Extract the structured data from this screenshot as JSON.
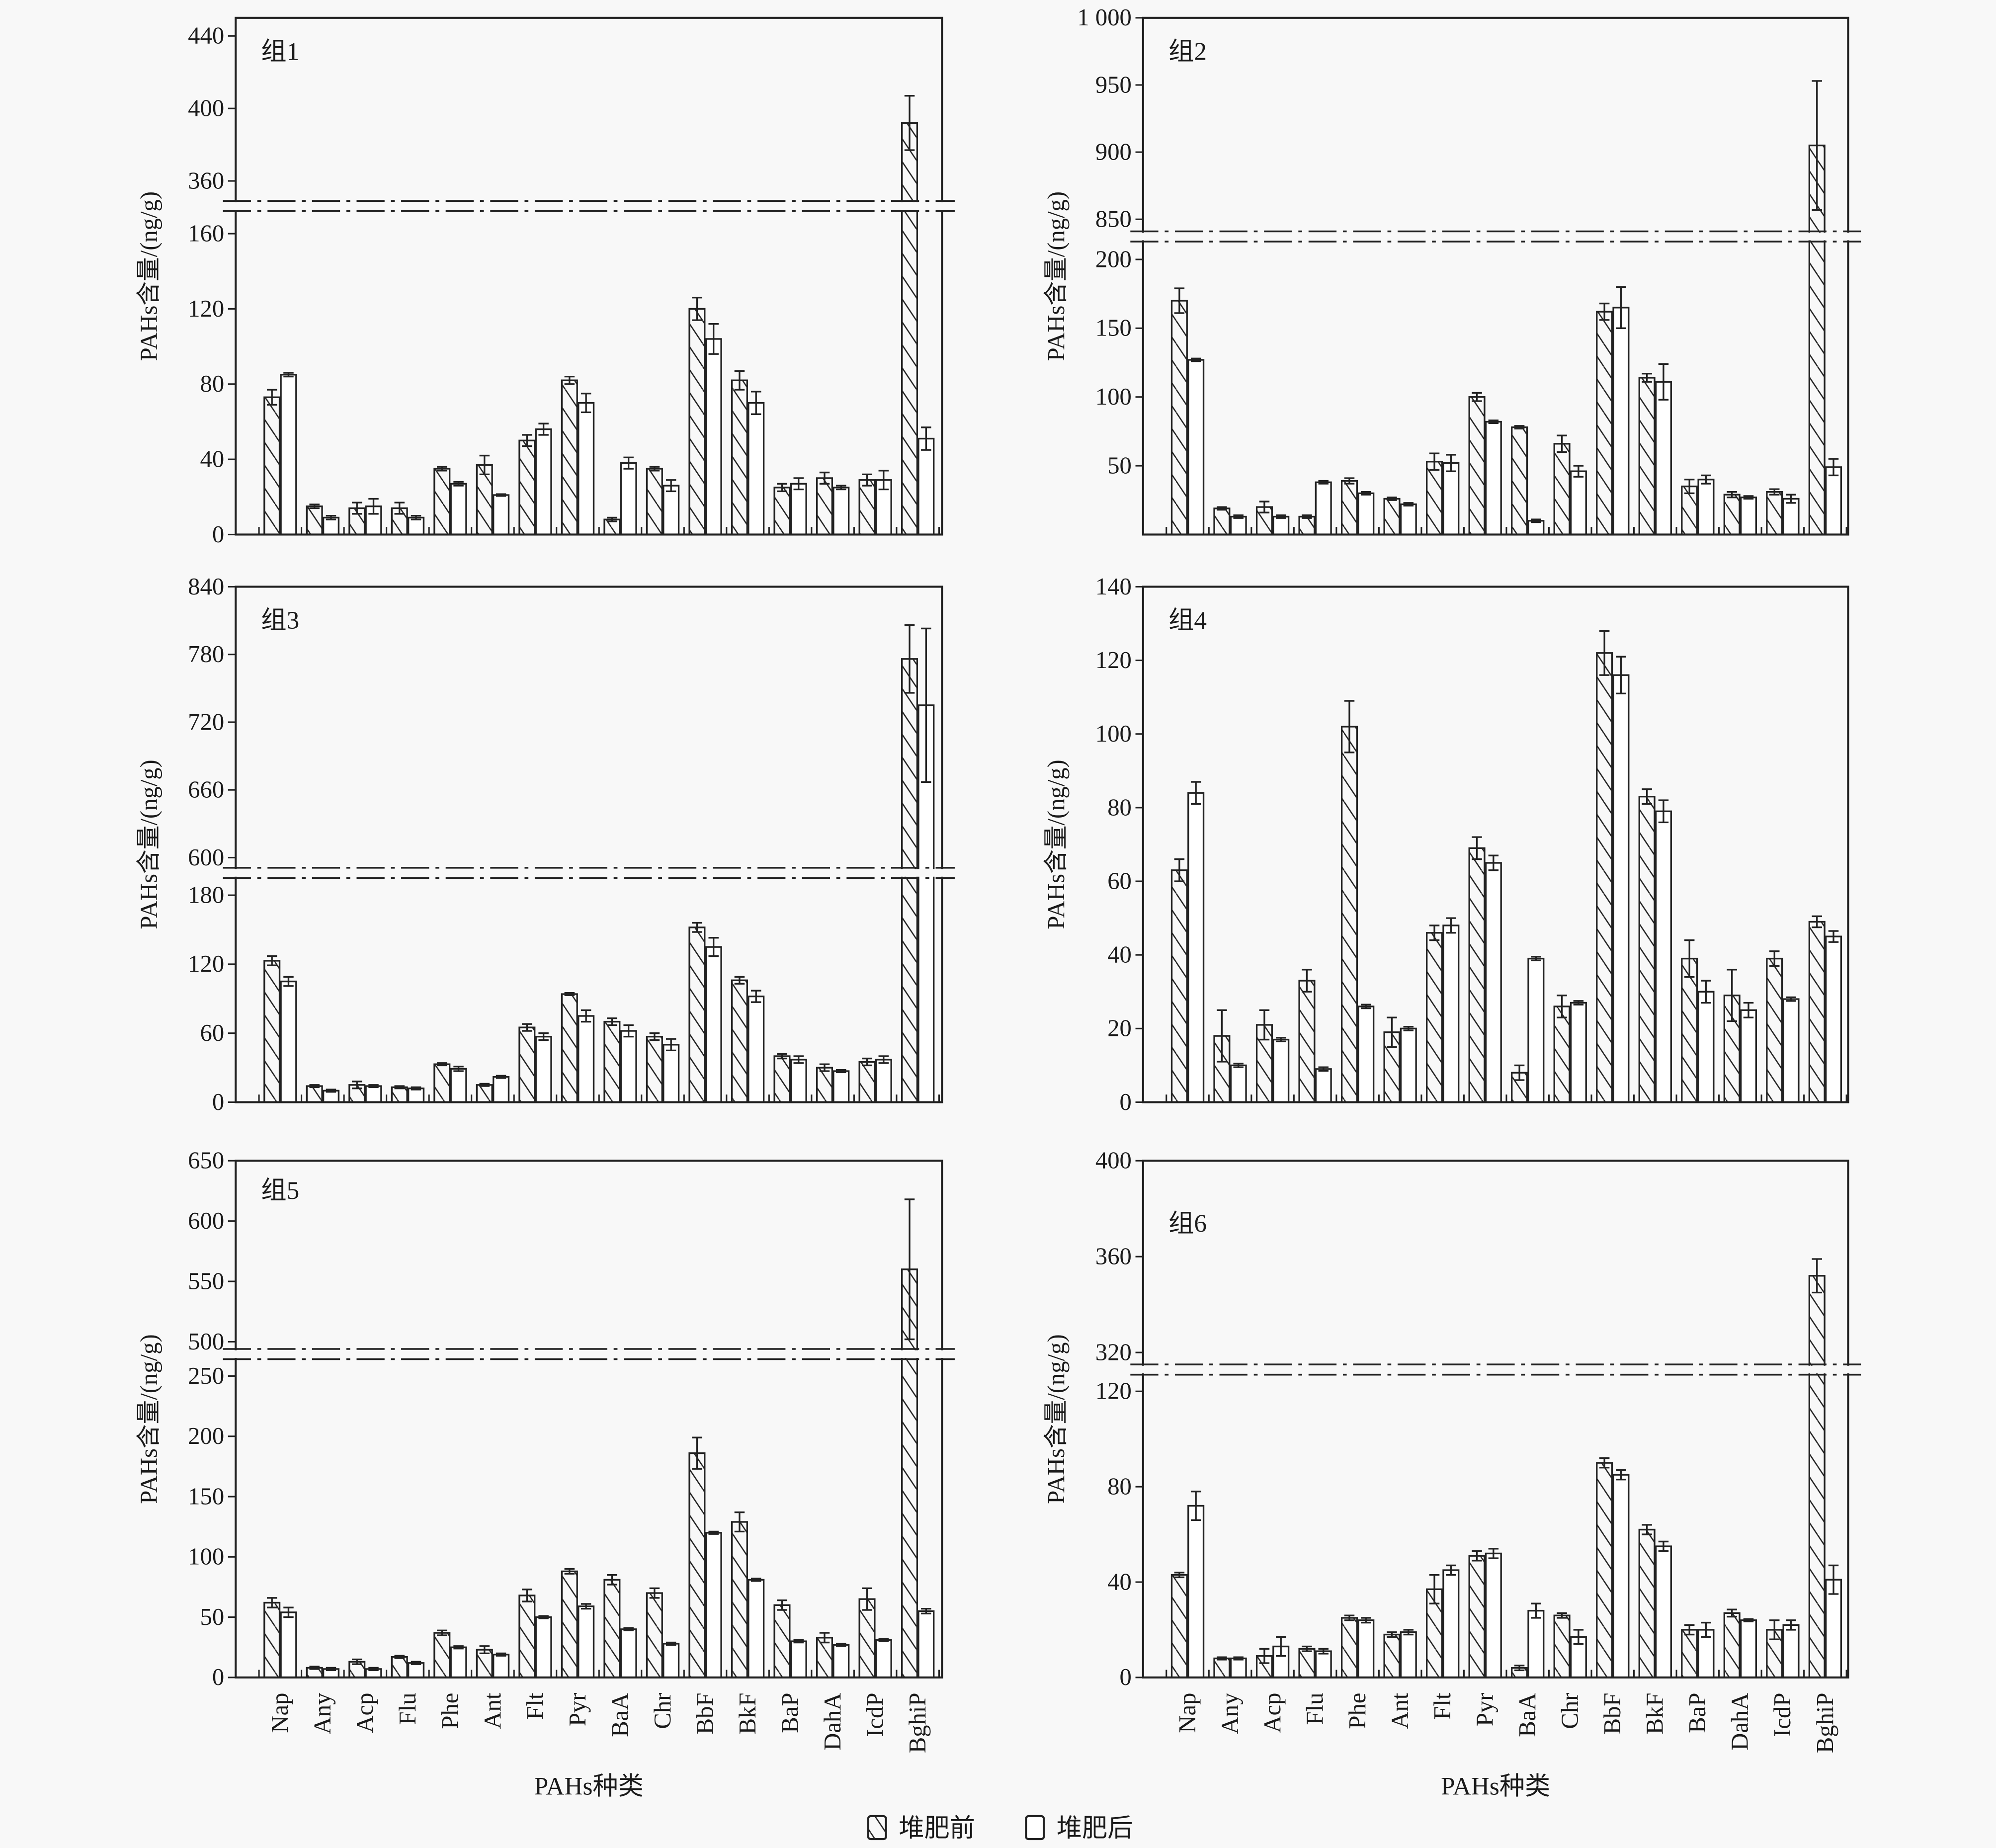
{
  "legend": {
    "before": "堆肥前",
    "after": "堆肥后"
  },
  "categories": [
    "Nap",
    "Any",
    "Acp",
    "Flu",
    "Phe",
    "Ant",
    "Flt",
    "Pyr",
    "BaA",
    "Chr",
    "BbF",
    "BkF",
    "BaP",
    "DahA",
    "IcdP",
    "BghiP"
  ],
  "chart_data": [
    {
      "type": "bar",
      "title": "组1",
      "ylabel": "PAHs含量/(ng/g)",
      "xlabel": "",
      "show_xticklabels": false,
      "ylim_lower": [
        0,
        172
      ],
      "ylim_upper": [
        349,
        450
      ],
      "yticks_lower": [
        "0",
        "40",
        "80",
        "120",
        "160"
      ],
      "yticks_upper": [
        "360",
        "400",
        "440"
      ],
      "series": [
        {
          "name": "堆肥前",
          "values": [
            73,
            15,
            14,
            14,
            35,
            37,
            50,
            82,
            8,
            35,
            120,
            82,
            25,
            30,
            29,
            392
          ],
          "errors": [
            4,
            1,
            3,
            3,
            1,
            5,
            3,
            2,
            1,
            1,
            6,
            5,
            2,
            3,
            3,
            15
          ]
        },
        {
          "name": "堆肥后",
          "values": [
            85,
            9,
            15,
            9,
            27,
            21,
            56,
            70,
            38,
            26,
            104,
            70,
            27,
            25,
            29,
            51
          ],
          "errors": [
            1,
            1,
            4,
            1,
            1,
            0.5,
            3,
            5,
            3,
            3,
            8,
            6,
            3,
            1,
            5,
            6
          ]
        }
      ]
    },
    {
      "type": "bar",
      "title": "组2",
      "ylabel": "PAHs含量/(ng/g)",
      "xlabel": "",
      "show_xticklabels": false,
      "ylim_lower": [
        0,
        213
      ],
      "ylim_upper": [
        841,
        1000
      ],
      "yticks_lower": [
        "50",
        "100",
        "150",
        "200"
      ],
      "yticks_upper": [
        "850",
        "900",
        "950",
        "1 000"
      ],
      "series": [
        {
          "name": "堆肥前",
          "values": [
            170,
            19,
            20,
            13,
            39,
            26,
            53,
            100,
            78,
            66,
            162,
            114,
            35,
            29,
            31,
            905
          ],
          "errors": [
            9,
            1,
            4,
            1,
            2,
            1,
            6,
            3,
            1,
            6,
            6,
            3,
            5,
            2,
            2,
            48
          ]
        },
        {
          "name": "堆肥后",
          "values": [
            127,
            13,
            13,
            38,
            30,
            22,
            52,
            82,
            10,
            46,
            165,
            111,
            40,
            27,
            26,
            49
          ],
          "errors": [
            1,
            1,
            1,
            1,
            1,
            1,
            6,
            1,
            1,
            4,
            15,
            13,
            3,
            1,
            3,
            6
          ]
        }
      ]
    },
    {
      "type": "bar",
      "title": "组3",
      "ylabel": "PAHs含量/(ng/g)",
      "xlabel": "",
      "show_xticklabels": false,
      "ylim_lower": [
        0,
        195
      ],
      "ylim_upper": [
        591,
        840
      ],
      "yticks_lower": [
        "0",
        "60",
        "120",
        "180"
      ],
      "yticks_upper": [
        "600",
        "660",
        "720",
        "780",
        "840"
      ],
      "series": [
        {
          "name": "堆肥前",
          "values": [
            123,
            14,
            15,
            13,
            33,
            15,
            65,
            94,
            70,
            57,
            152,
            106,
            40,
            30,
            35,
            776
          ],
          "errors": [
            4,
            1,
            3,
            1,
            1,
            1,
            3,
            1,
            3,
            3,
            4,
            3,
            2,
            3,
            3,
            30
          ]
        },
        {
          "name": "堆肥后",
          "values": [
            105,
            10,
            14,
            12,
            29,
            22,
            57,
            75,
            62,
            50,
            135,
            92,
            37,
            27,
            37,
            735
          ],
          "errors": [
            4,
            1,
            1,
            1,
            2,
            1,
            3,
            5,
            5,
            5,
            8,
            5,
            3,
            1,
            3,
            68
          ]
        }
      ]
    },
    {
      "type": "bar",
      "title": "组4",
      "ylabel": "PAHs含量/(ng/g)",
      "xlabel": "",
      "show_xticklabels": false,
      "ylim": [
        0,
        140
      ],
      "yticks": [
        "0",
        "20",
        "40",
        "60",
        "80",
        "100",
        "120",
        "140"
      ],
      "series": [
        {
          "name": "堆肥前",
          "values": [
            63,
            18,
            21,
            33,
            102,
            19,
            46,
            69,
            8,
            26,
            122,
            83,
            39,
            29,
            39,
            49
          ],
          "errors": [
            3,
            7,
            4,
            3,
            7,
            4,
            2,
            3,
            2,
            3,
            6,
            2,
            5,
            7,
            2,
            1.5
          ]
        },
        {
          "name": "堆肥后",
          "values": [
            84,
            10,
            17,
            9,
            26,
            20,
            48,
            65,
            39,
            27,
            116,
            79,
            30,
            25,
            28,
            45
          ],
          "errors": [
            3,
            0.5,
            0.5,
            0.5,
            0.5,
            0.5,
            2,
            2,
            0.5,
            0.5,
            5,
            3,
            3,
            2,
            0.5,
            1.5
          ]
        }
      ]
    },
    {
      "type": "bar",
      "title": "组5",
      "ylabel": "PAHs含量/(ng/g)",
      "xlabel": "PAHs种类",
      "show_xticklabels": true,
      "ylim_lower": [
        0,
        264
      ],
      "ylim_upper": [
        494,
        650
      ],
      "yticks_lower": [
        "0",
        "50",
        "100",
        "150",
        "200",
        "250"
      ],
      "yticks_upper": [
        "500",
        "550",
        "600",
        "650"
      ],
      "series": [
        {
          "name": "堆肥前",
          "values": [
            62,
            8,
            13,
            17,
            37,
            23,
            68,
            88,
            81,
            70,
            186,
            129,
            60,
            33,
            65,
            560
          ],
          "errors": [
            4,
            1,
            2,
            1,
            2,
            3,
            5,
            2,
            4,
            4,
            13,
            8,
            4,
            4,
            9,
            58
          ]
        },
        {
          "name": "堆肥后",
          "values": [
            54,
            7,
            7,
            12,
            25,
            19,
            50,
            59,
            40,
            28,
            120,
            81,
            30,
            27,
            31,
            55
          ],
          "errors": [
            4,
            1,
            1,
            1,
            1,
            1,
            1,
            2,
            1,
            1,
            1,
            1,
            1,
            1,
            1,
            2
          ]
        }
      ]
    },
    {
      "type": "bar",
      "title": "组6",
      "ylabel": "PAHs含量/(ng/g)",
      "xlabel": "PAHs种类",
      "show_xticklabels": true,
      "ylim_lower": [
        0,
        127
      ],
      "ylim_upper": [
        315,
        400
      ],
      "yticks_lower": [
        "0",
        "40",
        "80",
        "120"
      ],
      "yticks_upper": [
        "320",
        "360",
        "400"
      ],
      "series": [
        {
          "name": "堆肥前",
          "values": [
            43,
            8,
            9,
            12,
            25,
            18,
            37,
            51,
            4,
            26,
            90,
            62,
            20,
            27,
            20,
            352
          ],
          "errors": [
            1,
            0.5,
            3,
            1,
            1,
            1,
            6,
            2,
            1,
            1,
            2,
            2,
            2,
            1.5,
            4,
            7
          ]
        },
        {
          "name": "堆肥后",
          "values": [
            72,
            8,
            13,
            11,
            24,
            19,
            45,
            52,
            28,
            17,
            85,
            55,
            20,
            24,
            22,
            41
          ],
          "errors": [
            6,
            0.5,
            4,
            1,
            1,
            1,
            2,
            2,
            3,
            3,
            2,
            2,
            3,
            0.5,
            2,
            6
          ]
        }
      ]
    }
  ]
}
